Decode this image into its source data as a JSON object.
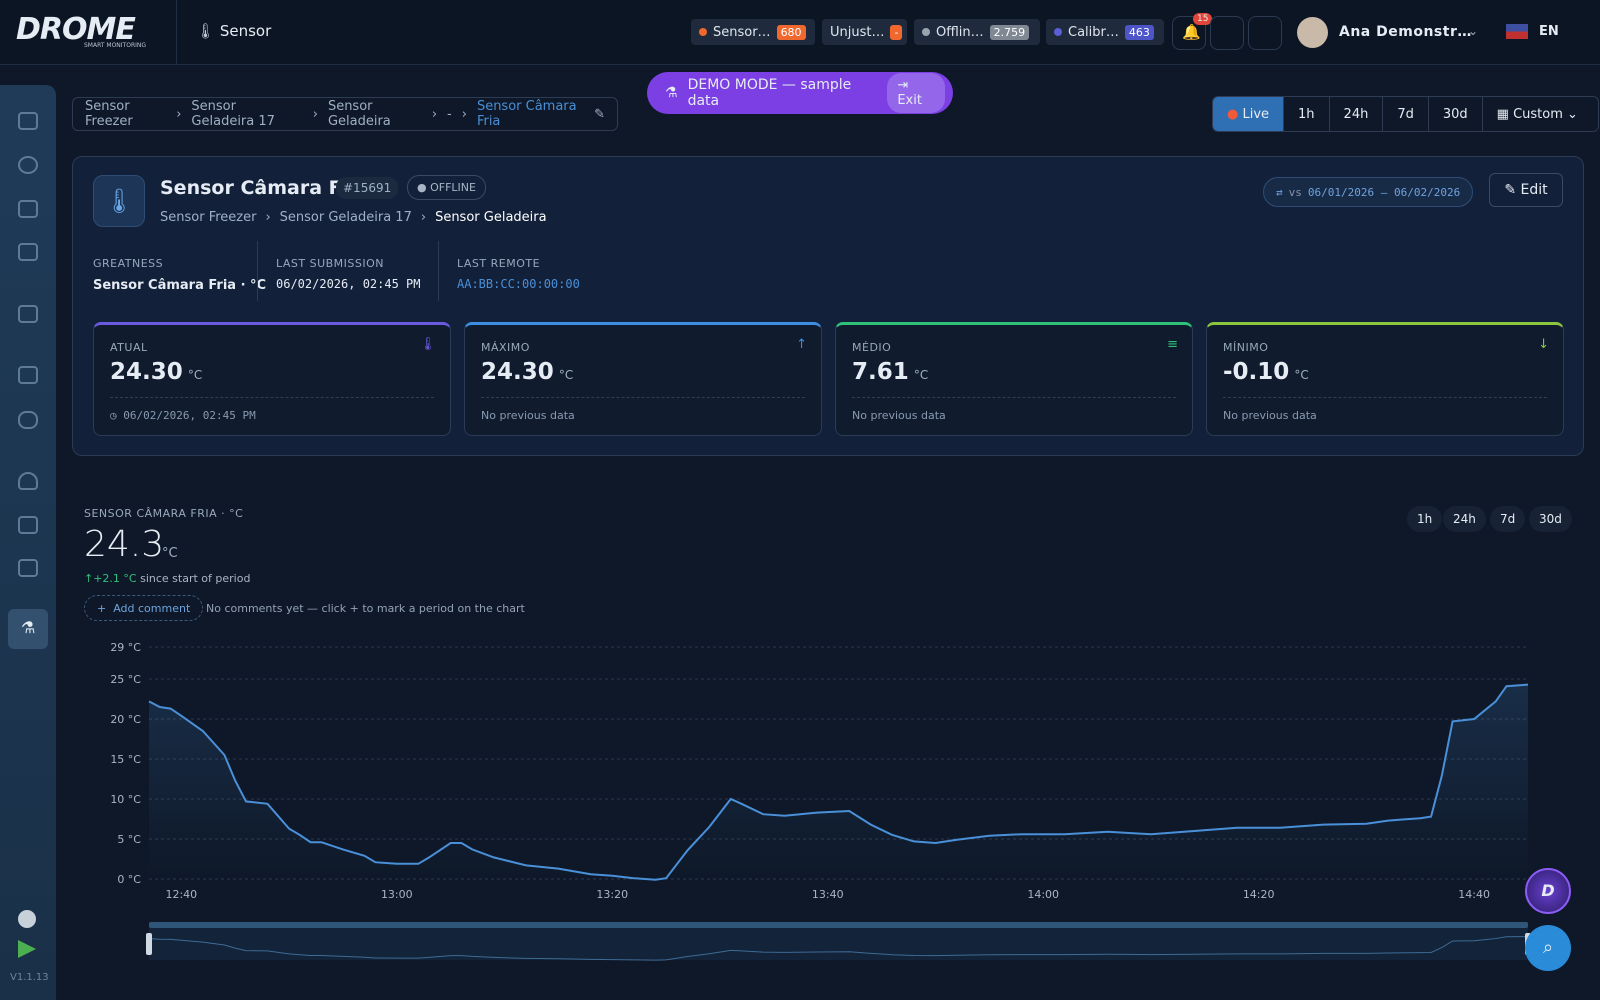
{
  "header": {
    "logo": "DROME",
    "logo_sub": "SMART MONITORING",
    "page": "Sensor",
    "pills": [
      {
        "label": "Sensor…",
        "count": "680"
      },
      {
        "label": "Unjust…",
        "count": "-"
      },
      {
        "label": "Offlin…",
        "count": "2.759"
      },
      {
        "label": "Calibr…",
        "count": "463"
      }
    ],
    "notifications": "15",
    "user": "Ana Demonstr…",
    "lang": "EN"
  },
  "demo": {
    "text": "DEMO MODE — sample data",
    "exit": "Exit"
  },
  "breadcrumb": [
    "Sensor Freezer",
    "Sensor Geladeira 17",
    "Sensor Geladeira",
    "-",
    "Sensor Câmara Fria"
  ],
  "ranges": [
    "Live",
    "1h",
    "24h",
    "7d",
    "30d",
    "Custom"
  ],
  "sensor": {
    "name": "Sensor Câmara Fria",
    "id": "#15691",
    "status": "OFFLINE",
    "path": [
      "Sensor Freezer",
      "Sensor Geladeira 17",
      "Sensor Geladeira"
    ],
    "compare": "vs",
    "compare_range": "06/01/2026 — 06/02/2026",
    "edit": "Edit",
    "meta": [
      {
        "label": "GREATNESS",
        "value": "Sensor Câmara Fria · °C"
      },
      {
        "label": "LAST SUBMISSION",
        "value": "06/02/2026, 02:45 PM"
      },
      {
        "label": "LAST REMOTE",
        "value": "AA:BB:CC:00:00:00"
      }
    ]
  },
  "stats": [
    {
      "label": "ATUAL",
      "value": "24.30",
      "unit": "°C",
      "note": "06/02/2026, 02:45 PM"
    },
    {
      "label": "MÁXIMO",
      "value": "24.30",
      "unit": "°C",
      "note": "No previous data"
    },
    {
      "label": "MÉDIO",
      "value": "7.61",
      "unit": "°C",
      "note": "No previous data"
    },
    {
      "label": "MÍNIMO",
      "value": "-0.10",
      "unit": "°C",
      "note": "No previous data"
    }
  ],
  "panel": {
    "title": "SENSOR CÂMARA FRIA · °C",
    "current": "24.3",
    "unit": "°C",
    "delta": "+2.1 °C",
    "delta_note": "since start of period",
    "add_comment": "Add comment",
    "comments_note": "No comments yet — click + to mark a period on the chart",
    "ranges": [
      "1h",
      "24h",
      "7d",
      "30d"
    ]
  },
  "chart_data": {
    "type": "line",
    "color": "#4a90d9",
    "grid": true,
    "x": [
      "12:37",
      "12:38",
      "12:39",
      "12:40",
      "12:42",
      "12:44",
      "12:45",
      "12:46",
      "12:48",
      "12:50",
      "12:51",
      "12:52",
      "12:53",
      "12:55",
      "12:57",
      "12:58",
      "13:00",
      "13:02",
      "13:03",
      "13:05",
      "13:06",
      "13:07",
      "13:09",
      "13:12",
      "13:15",
      "13:18",
      "13:20",
      "13:22",
      "13:24",
      "13:25",
      "13:27",
      "13:29",
      "13:31",
      "13:32",
      "13:34",
      "13:36",
      "13:39",
      "13:42",
      "13:44",
      "13:46",
      "13:48",
      "13:50",
      "13:52",
      "13:55",
      "13:58",
      "14:02",
      "14:06",
      "14:10",
      "14:14",
      "14:18",
      "14:22",
      "14:26",
      "14:30",
      "14:32",
      "14:35",
      "14:36",
      "14:37",
      "14:38",
      "14:40",
      "14:42",
      "14:43",
      "14:45"
    ],
    "values": [
      22.2,
      21.5,
      21.3,
      20.4,
      18.5,
      15.5,
      12.3,
      9.7,
      9.4,
      6.3,
      5.5,
      4.6,
      4.6,
      3.7,
      2.9,
      2.1,
      1.9,
      1.9,
      2.7,
      4.5,
      4.5,
      3.7,
      2.7,
      1.7,
      1.3,
      0.6,
      0.4,
      0.1,
      -0.1,
      0.1,
      3.6,
      6.5,
      10.0,
      9.4,
      8.1,
      7.9,
      8.3,
      8.5,
      6.8,
      5.5,
      4.7,
      4.5,
      4.9,
      5.4,
      5.6,
      5.6,
      5.9,
      5.6,
      6.0,
      6.4,
      6.4,
      6.8,
      6.9,
      7.3,
      7.6,
      7.8,
      12.9,
      19.7,
      20.0,
      22.2,
      24.1,
      24.3
    ],
    "xlim": [
      "12:37",
      "14:45"
    ],
    "xticks": [
      "12:40",
      "13:00",
      "13:20",
      "13:40",
      "14:00",
      "14:20",
      "14:40"
    ],
    "ylim": [
      0,
      29
    ],
    "yticks": [
      {
        "value": 0,
        "label": "0 °C"
      },
      {
        "value": 5,
        "label": "5 °C"
      },
      {
        "value": 10,
        "label": "10 °C"
      },
      {
        "value": 15,
        "label": "15 °C"
      },
      {
        "value": 20,
        "label": "20 °C"
      },
      {
        "value": 25,
        "label": "25 °C"
      },
      {
        "value": 29,
        "label": "29 °C"
      }
    ]
  },
  "version": "V1.1.13"
}
